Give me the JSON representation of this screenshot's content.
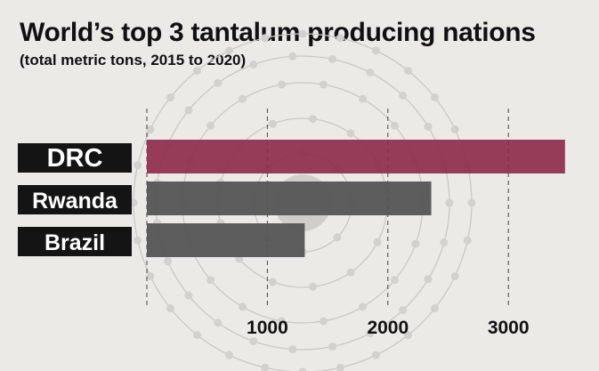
{
  "title": "World’s top 3 tantalum producing nations",
  "subtitle": "(total metric tons, 2015 to 2020)",
  "colors": {
    "background": "#ebeae6",
    "label_box": "#141414",
    "label_text": "#ffffff",
    "highlight_bar": "#8e2c4d",
    "other_bar": "#555555",
    "gridline": "#444444",
    "tick_text": "#111111"
  },
  "chart_data": {
    "type": "bar",
    "orientation": "horizontal",
    "categories": [
      "DRC",
      "Rwanda",
      "Brazil"
    ],
    "values": [
      3470,
      2360,
      1310
    ],
    "xlim": [
      0,
      3600
    ],
    "xticks": [
      1000,
      2000,
      3000
    ],
    "xtick_labels": [
      "1000",
      "2000",
      "3000"
    ],
    "grid": "dashed vertical",
    "highlight": "DRC",
    "background_graphic": "atom-icon"
  }
}
